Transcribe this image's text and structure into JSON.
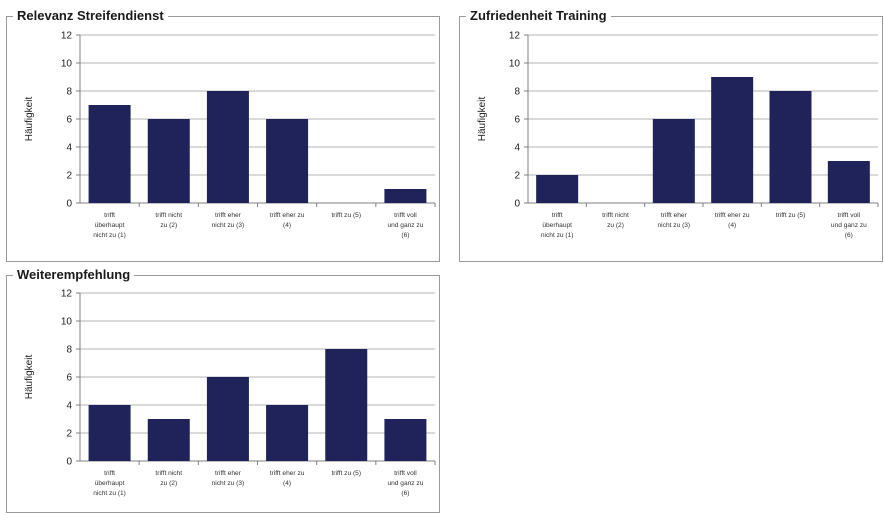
{
  "colors": {
    "bar": "#1f2359",
    "grid": "#b5b5b5",
    "axis": "#808080"
  },
  "categories": [
    [
      "trifft",
      "überhaupt",
      "nicht zu (1)"
    ],
    [
      "trifft nicht",
      "zu (2)"
    ],
    [
      "trifft eher",
      "nicht zu (3)"
    ],
    [
      "trifft eher zu",
      "(4)"
    ],
    [
      "trifft zu (5)"
    ],
    [
      "trifft voll",
      "und ganz zu",
      "(6)"
    ]
  ],
  "chart_data": [
    {
      "type": "bar",
      "title": "Relevanz Streifendienst",
      "ylabel": "Häufigkeit",
      "xlabel": "",
      "ylim": [
        0,
        12
      ],
      "yticks": [
        0,
        2,
        4,
        6,
        8,
        10,
        12
      ],
      "grid": true,
      "categories": [
        "trifft überhaupt nicht zu (1)",
        "trifft nicht zu (2)",
        "trifft eher nicht zu (3)",
        "trifft eher zu (4)",
        "trifft zu (5)",
        "trifft voll und ganz zu (6)"
      ],
      "values": [
        7,
        6,
        8,
        6,
        0,
        1
      ]
    },
    {
      "type": "bar",
      "title": "Zufriedenheit Training",
      "ylabel": "Häufigkeit",
      "xlabel": "",
      "ylim": [
        0,
        12
      ],
      "yticks": [
        0,
        2,
        4,
        6,
        8,
        10,
        12
      ],
      "grid": true,
      "categories": [
        "trifft überhaupt nicht zu (1)",
        "trifft nicht zu (2)",
        "trifft eher nicht zu (3)",
        "trifft eher zu (4)",
        "trifft zu (5)",
        "trifft voll und ganz zu (6)"
      ],
      "values": [
        2,
        0,
        6,
        9,
        8,
        3
      ]
    },
    {
      "type": "bar",
      "title": "Weiterempfehlung",
      "ylabel": "Häufigkeit",
      "xlabel": "",
      "ylim": [
        0,
        12
      ],
      "yticks": [
        0,
        2,
        4,
        6,
        8,
        10,
        12
      ],
      "grid": true,
      "categories": [
        "trifft überhaupt nicht zu (1)",
        "trifft nicht zu (2)",
        "trifft eher nicht zu (3)",
        "trifft eher zu (4)",
        "trifft zu (5)",
        "trifft voll und ganz zu (6)"
      ],
      "values": [
        4,
        3,
        6,
        4,
        8,
        3
      ]
    }
  ]
}
